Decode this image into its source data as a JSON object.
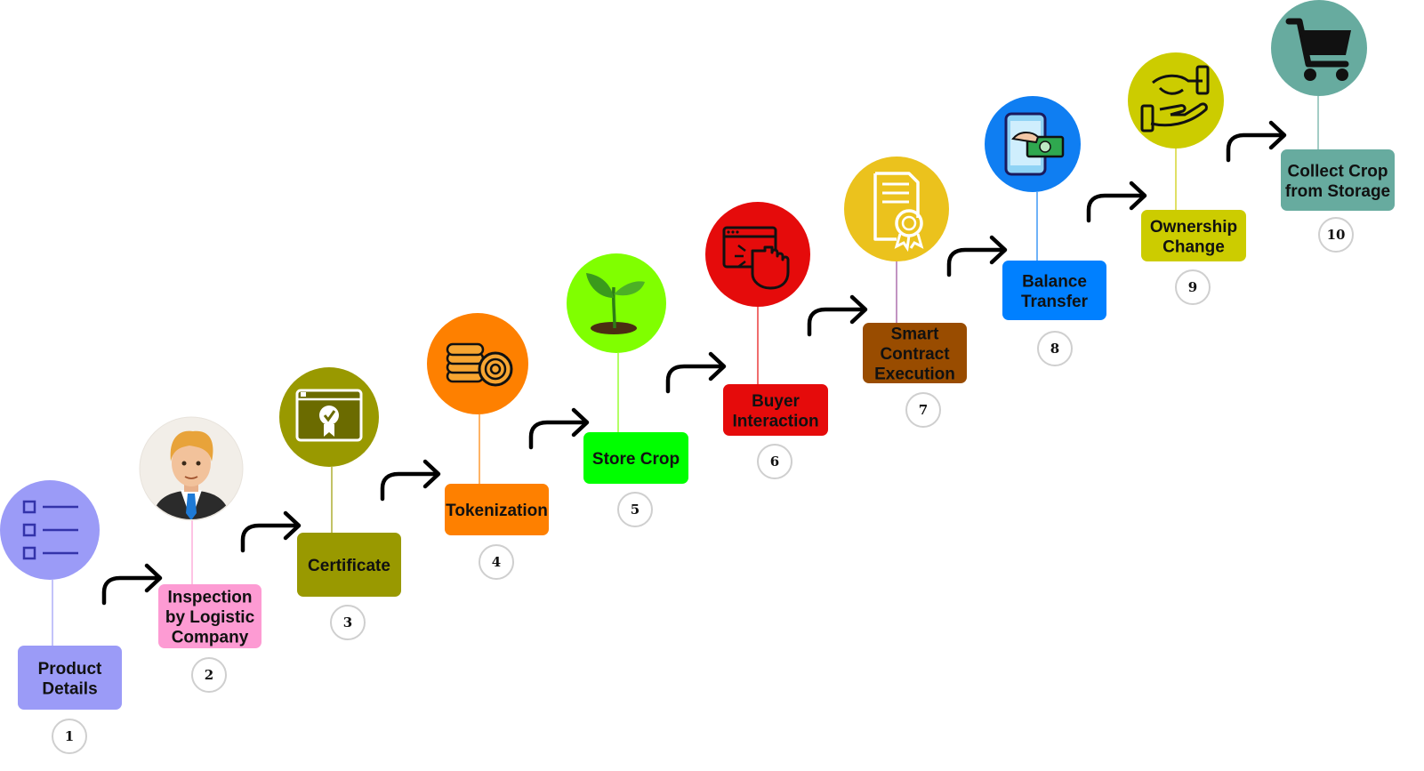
{
  "steps": [
    {
      "number": "1",
      "lines": [
        "Product",
        "Details"
      ],
      "color": "#9b9bf7",
      "icon": "checklist-icon"
    },
    {
      "number": "2",
      "lines": [
        "Inspection",
        "by Logistic",
        "Company"
      ],
      "color": "#fd9bd3",
      "icon": "inspector-person-icon"
    },
    {
      "number": "3",
      "lines": [
        "Certificate"
      ],
      "color": "#999900",
      "icon": "certificate-screen-icon"
    },
    {
      "number": "4",
      "lines": [
        "Tokenization"
      ],
      "color": "#fe8000",
      "icon": "coins-icon"
    },
    {
      "number": "5",
      "lines": [
        "Store Crop"
      ],
      "color": "#00ff00",
      "icon": "plant-sprout-icon"
    },
    {
      "number": "6",
      "lines": [
        "Buyer",
        "Interaction"
      ],
      "color": "#e50b0b",
      "icon": "browser-click-icon"
    },
    {
      "number": "7",
      "lines": [
        "Smart",
        "Contract",
        "Execution"
      ],
      "color": "#994c00",
      "icon": "contract-document-icon"
    },
    {
      "number": "8",
      "lines": [
        "Balance",
        "Transfer"
      ],
      "color": "#0080ff",
      "icon": "mobile-payment-icon"
    },
    {
      "number": "9",
      "lines": [
        "Ownership",
        "Change"
      ],
      "color": "#cccc00",
      "icon": "hand-over-icon"
    },
    {
      "number": "10",
      "lines": [
        "Collect Crop",
        "from Storage"
      ],
      "color": "#67ab9f",
      "icon": "shopping-cart-icon"
    }
  ],
  "circle_colors": [
    "#9b9bf7",
    "#f2eee8",
    "#999900",
    "#fe8000",
    "#80ff00",
    "#e50b0b",
    "#ebc21d",
    "#0f7ef2",
    "#cccc00",
    "#67ab9f"
  ],
  "connector_colors": [
    "#9b9bf7",
    "#fd9bd3",
    "#999900",
    "#fe8000",
    "#80ff00",
    "#e50b0b",
    "#994c99",
    "#0f7ef2",
    "#cccc00",
    "#67ab9f"
  ]
}
